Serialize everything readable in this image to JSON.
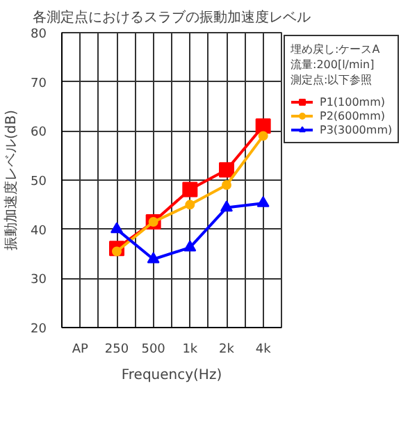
{
  "chart_data": {
    "type": "line",
    "title": "各測定点におけるスラブの振動加速度レベル",
    "xlabel": "Frequency(Hz)",
    "ylabel": "振動加速度レベル(dB)",
    "categories": [
      "AP",
      "250",
      "500",
      "1k",
      "2k",
      "4k"
    ],
    "series": [
      {
        "name": "P1(100mm)",
        "color": "#ff0000",
        "marker": "square",
        "values": [
          null,
          36.1,
          41.5,
          48.1,
          52.1,
          61.0
        ]
      },
      {
        "name": "P2(600mm)",
        "color": "#ffb000",
        "marker": "circle",
        "values": [
          null,
          35.5,
          41.5,
          45.0,
          49.0,
          59.0
        ]
      },
      {
        "name": "P3(3000mm)",
        "color": "#0000ff",
        "marker": "triangle",
        "values": [
          null,
          40.0,
          33.9,
          36.3,
          44.4,
          45.3
        ]
      }
    ],
    "ylim": [
      20,
      80
    ],
    "yticks": [
      20,
      30,
      40,
      50,
      60,
      70,
      80
    ],
    "grid": true,
    "legend": "right",
    "annotations": [
      "埋め戻し:ケースA",
      "流量:200[l/min]",
      "測定点:以下参照"
    ]
  }
}
